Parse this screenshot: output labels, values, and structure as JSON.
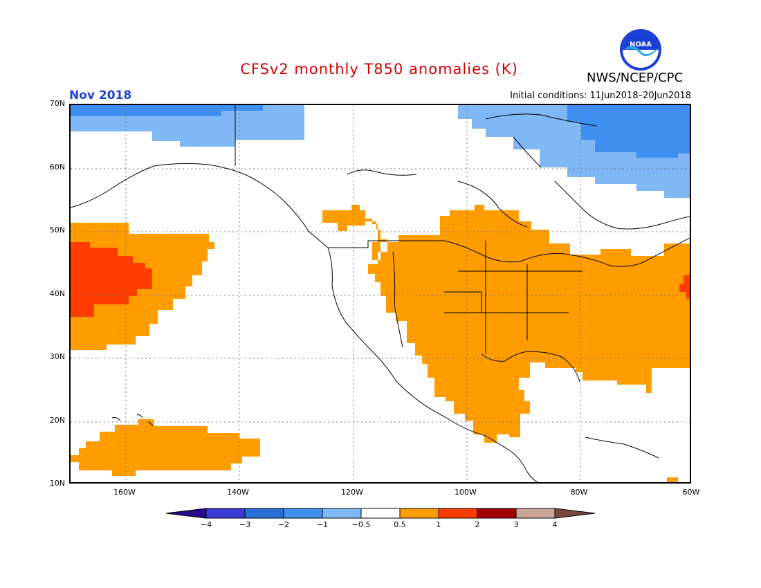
{
  "title": "CFSv2 monthly T850 anomalies (K)",
  "agency": "NWS/NCEP/CPC",
  "logo_text": "NOAA",
  "month": "Nov 2018",
  "initial_conditions": "Initial conditions: 11Jun2018–20Jun2018",
  "colors": {
    "title": "#d40000",
    "month": "#2244cc",
    "blue_light": "#7fb8f5",
    "blue_mid": "#3f8ff0",
    "orange": "#ff9d00",
    "red_orange": "#ff3d00"
  },
  "lat_labels": [
    "70N",
    "60N",
    "50N",
    "40N",
    "30N",
    "20N",
    "10N"
  ],
  "lon_labels": [
    "160W",
    "140W",
    "120W",
    "100W",
    "80W",
    "60W"
  ],
  "colorbar": {
    "labels": [
      "−4",
      "−3",
      "−2",
      "−1",
      "−0.5",
      "0.5",
      "1",
      "2",
      "3",
      "4"
    ],
    "colors": [
      "#2a0a8c",
      "#3d3dd6",
      "#2a6fd6",
      "#3f8ff0",
      "#7fb8f5",
      "#ffffff",
      "#ff9d00",
      "#ff3d00",
      "#a00000",
      "#c9a595",
      "#7a4a40"
    ]
  }
}
